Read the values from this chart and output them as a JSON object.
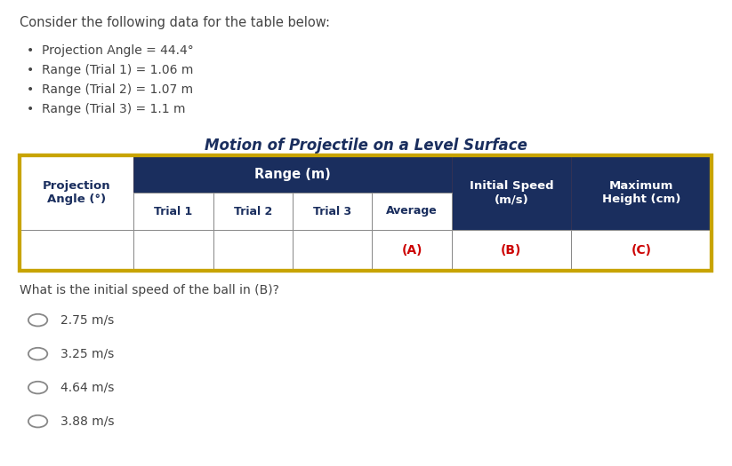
{
  "title_text": "Consider the following data for the table below:",
  "bullets": [
    "Projection Angle = 44.4°",
    "Range (Trial 1) = 1.06 m",
    "Range (Trial 2) = 1.07 m",
    "Range (Trial 3) = 1.1 m"
  ],
  "table_title": "Motion of Projectile on a Level Surface",
  "header_bg_dark": "#1a2e5e",
  "header_bg_white": "#ffffff",
  "header_text_white": "#ffffff",
  "border_color_gold": "#c8a400",
  "cell_bg": "#ffffff",
  "red_text": "#cc0000",
  "dark_text": "#1a2e5e",
  "question_text": "What is the initial speed of the ball in (B)?",
  "options": [
    "2.75 m/s",
    "3.25 m/s",
    "4.64 m/s",
    "3.88 m/s"
  ],
  "bg_color": "#ffffff",
  "fig_width": 8.23,
  "fig_height": 5.25,
  "dpi": 100
}
